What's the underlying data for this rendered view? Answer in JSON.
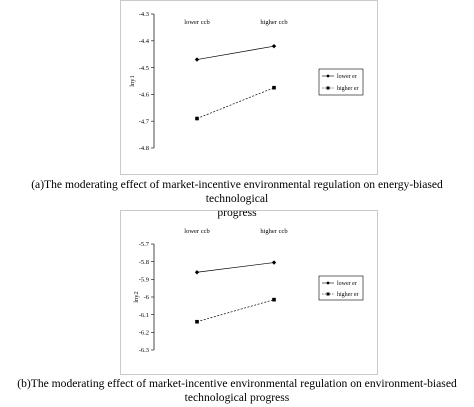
{
  "captions": {
    "a_line1": "(a)The moderating effect of market-incentive environmental regulation on energy-biased technological",
    "a_line2": "progress",
    "b_line1": "(b)The moderating effect of market-incentive environmental regulation on environment-biased",
    "b_line2": "technological progress"
  },
  "chart_data": [
    {
      "type": "line",
      "categories": [
        "lower ccb",
        "higher ccb"
      ],
      "ylabel": "lny1",
      "ylim": [
        -4.8,
        -4.3
      ],
      "yticks": [
        -4.3,
        -4.4,
        -4.5,
        -4.6,
        -4.7,
        -4.8
      ],
      "ytick_labels": [
        "-4.3",
        "-4.4",
        "-4.5",
        "-4.6",
        "-4.7",
        "-4.8"
      ],
      "legend_position": "right",
      "series": [
        {
          "name": "lower er",
          "values": [
            -4.47,
            -4.42
          ],
          "style": "solid",
          "marker": "diamond"
        },
        {
          "name": "higher er",
          "values": [
            -4.69,
            -4.575
          ],
          "style": "dashed",
          "marker": "square"
        }
      ]
    },
    {
      "type": "line",
      "categories": [
        "lower ccb",
        "higher ccb"
      ],
      "ylabel": "lny2",
      "ylim": [
        -6.3,
        -5.7
      ],
      "yticks": [
        -5.7,
        -5.8,
        -5.9,
        -6,
        -6.1,
        -6.2,
        -6.3
      ],
      "ytick_labels": [
        "-5.7",
        "-5.8",
        "-5.9",
        "-6",
        "-6.1",
        "-6.2",
        "-6.3"
      ],
      "legend_position": "right",
      "series": [
        {
          "name": "lower er",
          "values": [
            -5.86,
            -5.805
          ],
          "style": "solid",
          "marker": "diamond"
        },
        {
          "name": "higher er",
          "values": [
            -6.14,
            -6.015
          ],
          "style": "dashed",
          "marker": "square"
        }
      ]
    }
  ]
}
